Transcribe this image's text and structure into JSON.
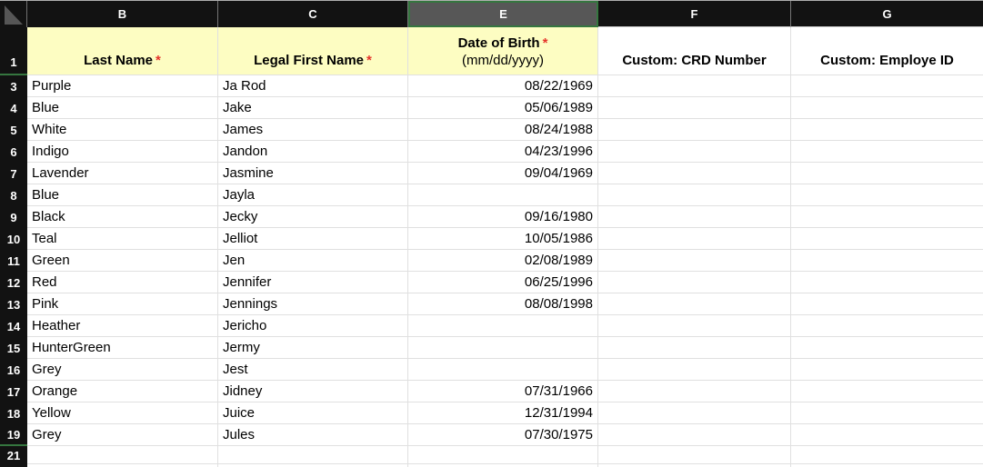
{
  "sheet": {
    "corner_label": "select-all",
    "columns": [
      {
        "letter": "B",
        "selected": false
      },
      {
        "letter": "C",
        "selected": false
      },
      {
        "letter": "E",
        "selected": true
      },
      {
        "letter": "F",
        "selected": false
      },
      {
        "letter": "G",
        "selected": false
      }
    ],
    "header_row": {
      "row_number": "1",
      "hidden_row_after": true,
      "cells": [
        {
          "col": "B",
          "label": "Last Name",
          "required_marker": "*",
          "bg": "#fdfdc2"
        },
        {
          "col": "C",
          "label": "Legal First Name",
          "required_marker": "*",
          "bg": "#fdfdc2"
        },
        {
          "col": "E",
          "label": "Date of Birth",
          "required_marker": "*",
          "sub": "(mm/dd/yyyy)",
          "bg": "#fdfdc2"
        },
        {
          "col": "F",
          "label": "Custom: CRD Number",
          "bg": "#ffffff"
        },
        {
          "col": "G",
          "label": "Custom: Employe ID",
          "bg": "#ffffff"
        }
      ]
    },
    "rows": [
      {
        "n": "3",
        "last": "Purple",
        "first": "Ja Rod",
        "dob": "08/22/1969"
      },
      {
        "n": "4",
        "last": "Blue",
        "first": "Jake",
        "dob": "05/06/1989"
      },
      {
        "n": "5",
        "last": "White",
        "first": "James",
        "dob": "08/24/1988"
      },
      {
        "n": "6",
        "last": "Indigo",
        "first": "Jandon",
        "dob": "04/23/1996"
      },
      {
        "n": "7",
        "last": "Lavender",
        "first": "Jasmine",
        "dob": "09/04/1969"
      },
      {
        "n": "8",
        "last": "Blue",
        "first": "Jayla",
        "dob": ""
      },
      {
        "n": "9",
        "last": "Black",
        "first": "Jecky",
        "dob": "09/16/1980"
      },
      {
        "n": "10",
        "last": "Teal",
        "first": "Jelliot",
        "dob": "10/05/1986"
      },
      {
        "n": "11",
        "last": "Green",
        "first": "Jen",
        "dob": "02/08/1989"
      },
      {
        "n": "12",
        "last": "Red",
        "first": "Jennifer",
        "dob": "06/25/1996"
      },
      {
        "n": "13",
        "last": "Pink",
        "first": "Jennings",
        "dob": "08/08/1998"
      },
      {
        "n": "14",
        "last": "Heather",
        "first": "Jericho",
        "dob": ""
      },
      {
        "n": "15",
        "last": "HunterGreen",
        "first": "Jermy",
        "dob": ""
      },
      {
        "n": "16",
        "last": "Grey",
        "first": "Jest",
        "dob": ""
      },
      {
        "n": "17",
        "last": "Orange",
        "first": "Jidney",
        "dob": "07/31/1966"
      },
      {
        "n": "18",
        "last": "Yellow",
        "first": "Juice",
        "dob": "12/31/1994"
      },
      {
        "n": "19",
        "last": "Grey",
        "first": "Jules",
        "dob": "07/30/1975",
        "hidden_row_after": true
      },
      {
        "n": "21",
        "last": "",
        "first": "",
        "dob": "",
        "clipped": true
      }
    ],
    "colors": {
      "header_bg": "#121212",
      "selected_column_bg": "#575757",
      "selection_green": "#35763f",
      "required_red": "#e5332a",
      "header_cell_yellow": "#fdfdc2",
      "gridline": "#e0e0e0"
    }
  }
}
